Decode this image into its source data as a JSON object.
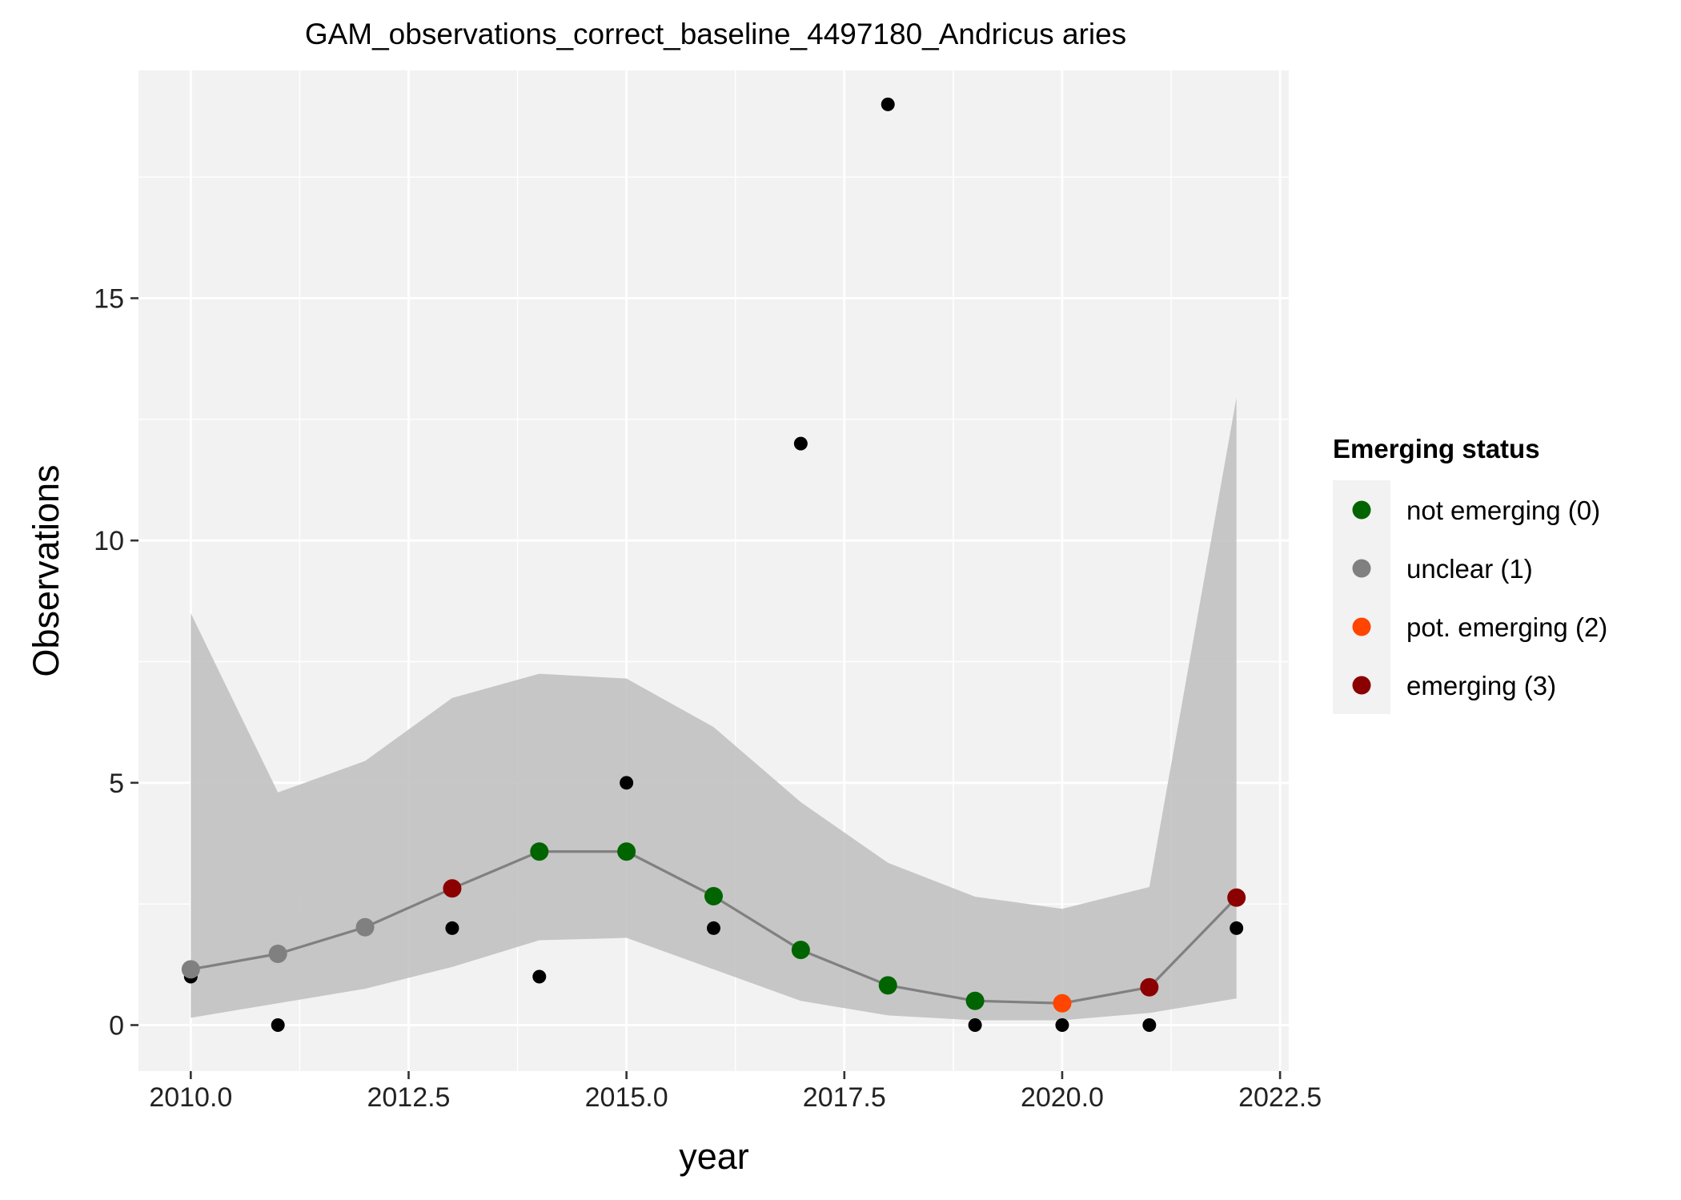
{
  "chart_data": {
    "type": "line",
    "title": "GAM_observations_correct_baseline_4497180_Andricus aries",
    "xlabel": "year",
    "ylabel": "Observations",
    "xlim": [
      2009.4,
      2022.6
    ],
    "ylim": [
      -0.95,
      19.7
    ],
    "x_ticks": [
      2010.0,
      2012.5,
      2015.0,
      2017.5,
      2020.0,
      2022.5
    ],
    "x_tick_labels": [
      "2010.0",
      "2012.5",
      "2015.0",
      "2017.5",
      "2020.0",
      "2022.5"
    ],
    "y_ticks": [
      0,
      5,
      10,
      15
    ],
    "y_tick_labels": [
      "0",
      "5",
      "10",
      "15"
    ],
    "grid": true,
    "panel_background": "#F2F2F2",
    "grid_color": "#FFFFFF",
    "legend": {
      "title": "Emerging status",
      "position": "right",
      "entries": [
        {
          "label": "not emerging (0)",
          "color": "#006400"
        },
        {
          "label": "unclear (1)",
          "color": "#808080"
        },
        {
          "label": "pot. emerging (2)",
          "color": "#FF4500"
        },
        {
          "label": "emerging (3)",
          "color": "#8B0000"
        }
      ]
    },
    "confidence_band": {
      "color": "#BEBEBE",
      "x": [
        2010,
        2011,
        2012,
        2013,
        2014,
        2015,
        2016,
        2017,
        2018,
        2019,
        2020,
        2021,
        2022
      ],
      "lower": [
        0.15,
        0.45,
        0.75,
        1.2,
        1.75,
        1.8,
        1.15,
        0.5,
        0.2,
        0.1,
        0.1,
        0.25,
        0.55
      ],
      "upper": [
        8.5,
        4.8,
        5.45,
        6.75,
        7.25,
        7.15,
        6.15,
        4.6,
        3.35,
        2.65,
        2.4,
        2.85,
        12.95
      ]
    },
    "series": [
      {
        "kind": "observed",
        "color": "#000000",
        "x": [
          2010,
          2011,
          2012,
          2013,
          2014,
          2015,
          2016,
          2017,
          2018,
          2019,
          2020,
          2021,
          2022
        ],
        "y": [
          1,
          0,
          2,
          2,
          1,
          5,
          2,
          12,
          19,
          0,
          0,
          0,
          2
        ]
      },
      {
        "kind": "fitted",
        "line_color": "#808080",
        "x": [
          2010,
          2011,
          2012,
          2013,
          2014,
          2015,
          2016,
          2017,
          2018,
          2019,
          2020,
          2021,
          2022
        ],
        "y": [
          1.15,
          1.47,
          2.02,
          2.82,
          3.58,
          3.58,
          2.66,
          1.55,
          0.82,
          0.5,
          0.45,
          0.78,
          2.63
        ],
        "status": [
          1,
          1,
          1,
          3,
          0,
          0,
          0,
          0,
          0,
          0,
          2,
          3,
          3
        ]
      }
    ]
  }
}
